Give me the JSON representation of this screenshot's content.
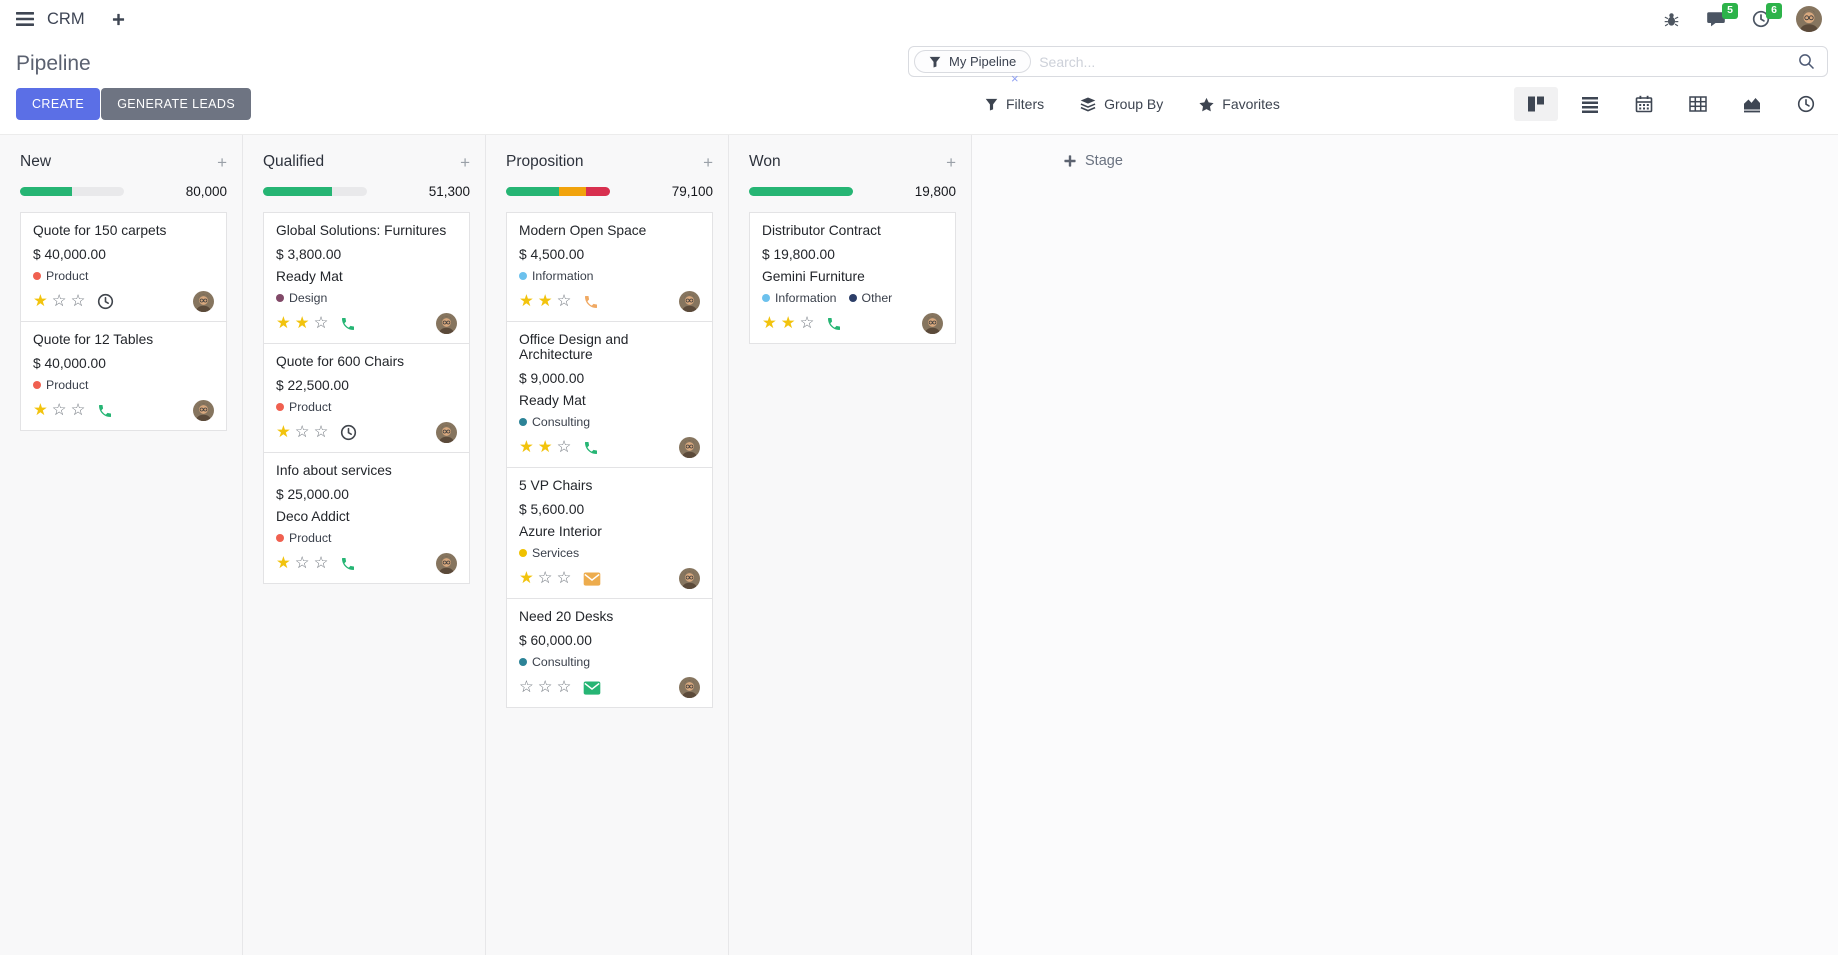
{
  "navbar": {
    "app_name": "CRM",
    "messages_badge": "5",
    "activities_badge": "6"
  },
  "control_panel": {
    "title": "Pipeline",
    "create_label": "CREATE",
    "generate_leads_label": "GENERATE LEADS",
    "search": {
      "facet_label": "My Pipeline",
      "placeholder": "Search..."
    },
    "filters_label": "Filters",
    "group_by_label": "Group By",
    "favorites_label": "Favorites",
    "view_switcher": [
      {
        "name": "kanban",
        "active": true
      },
      {
        "name": "list",
        "active": false
      },
      {
        "name": "calendar",
        "active": false
      },
      {
        "name": "pivot",
        "active": false
      },
      {
        "name": "graph",
        "active": false
      },
      {
        "name": "activity",
        "active": false
      }
    ]
  },
  "icons": {
    "plus_glyph": "+",
    "close_glyph": "×"
  },
  "colors": {
    "primary_button": "#5B6FE6",
    "secondary_button": "#6E7482",
    "badge_green": "#2DB34A",
    "progress_success": "#26B574",
    "progress_warning": "#F1A30C",
    "progress_danger": "#D8304F",
    "star_gold": "#F2C30D",
    "icon_green": "#26B574",
    "icon_orange_phone": "#F0A963",
    "icon_orange_envelope": "#EDAC4D",
    "icon_clock_dark": "#41464D"
  },
  "kanban": {
    "add_stage_label": "Stage",
    "columns": [
      {
        "title": "New",
        "counter": "80,000",
        "progress": [
          {
            "name": "success",
            "color": "#26B574",
            "pct": 50
          }
        ],
        "cards": [
          {
            "title": "Quote for 150 carpets",
            "amount": "$ 40,000.00",
            "partner": null,
            "tags": [
              {
                "label": "Product",
                "color": "#F06050"
              }
            ],
            "stars": 1,
            "activity": {
              "icon": "clock",
              "color": "#41464D"
            }
          },
          {
            "title": "Quote for 12 Tables",
            "amount": "$ 40,000.00",
            "partner": null,
            "tags": [
              {
                "label": "Product",
                "color": "#F06050"
              }
            ],
            "stars": 1,
            "activity": {
              "icon": "phone",
              "color": "#26B574"
            }
          }
        ]
      },
      {
        "title": "Qualified",
        "counter": "51,300",
        "progress": [
          {
            "name": "success",
            "color": "#26B574",
            "pct": 66
          }
        ],
        "cards": [
          {
            "title": "Global Solutions: Furnitures",
            "amount": "$ 3,800.00",
            "partner": "Ready Mat",
            "tags": [
              {
                "label": "Design",
                "color": "#814968"
              }
            ],
            "stars": 2,
            "activity": {
              "icon": "phone",
              "color": "#26B574"
            }
          },
          {
            "title": "Quote for 600 Chairs",
            "amount": "$ 22,500.00",
            "partner": null,
            "tags": [
              {
                "label": "Product",
                "color": "#F06050"
              }
            ],
            "stars": 1,
            "activity": {
              "icon": "clock",
              "color": "#41464D"
            }
          },
          {
            "title": "Info about services",
            "amount": "$ 25,000.00",
            "partner": "Deco Addict",
            "tags": [
              {
                "label": "Product",
                "color": "#F06050"
              }
            ],
            "stars": 1,
            "activity": {
              "icon": "phone",
              "color": "#26B574"
            }
          }
        ]
      },
      {
        "title": "Proposition",
        "counter": "79,100",
        "progress": [
          {
            "name": "success",
            "color": "#26B574",
            "pct": 51
          },
          {
            "name": "warning",
            "color": "#F1A30C",
            "pct": 26
          },
          {
            "name": "danger",
            "color": "#D8304F",
            "pct": 23
          }
        ],
        "cards": [
          {
            "title": "Modern Open Space",
            "amount": "$ 4,500.00",
            "partner": null,
            "tags": [
              {
                "label": "Information",
                "color": "#6CC1ED"
              }
            ],
            "stars": 2,
            "activity": {
              "icon": "phone",
              "color": "#F0A963"
            }
          },
          {
            "title": "Office Design and Architecture",
            "amount": "$ 9,000.00",
            "partner": "Ready Mat",
            "tags": [
              {
                "label": "Consulting",
                "color": "#2C8397"
              }
            ],
            "stars": 2,
            "activity": {
              "icon": "phone",
              "color": "#26B574"
            }
          },
          {
            "title": "5 VP Chairs",
            "amount": "$ 5,600.00",
            "partner": "Azure Interior",
            "tags": [
              {
                "label": "Services",
                "color": "#EFC100"
              }
            ],
            "stars": 1,
            "activity": {
              "icon": "envelope",
              "color": "#EDAC4D"
            }
          },
          {
            "title": "Need 20 Desks",
            "amount": "$ 60,000.00",
            "partner": null,
            "tags": [
              {
                "label": "Consulting",
                "color": "#2C8397"
              }
            ],
            "stars": 0,
            "activity": {
              "icon": "envelope",
              "color": "#26B574"
            }
          }
        ]
      },
      {
        "title": "Won",
        "counter": "19,800",
        "progress": [
          {
            "name": "success",
            "color": "#26B574",
            "pct": 100
          }
        ],
        "cards": [
          {
            "title": "Distributor Contract",
            "amount": "$ 19,800.00",
            "partner": "Gemini Furniture",
            "tags": [
              {
                "label": "Information",
                "color": "#6CC1ED"
              },
              {
                "label": "Other",
                "color": "#2C3E68"
              }
            ],
            "stars": 2,
            "activity": {
              "icon": "phone",
              "color": "#26B574"
            }
          }
        ]
      }
    ]
  }
}
